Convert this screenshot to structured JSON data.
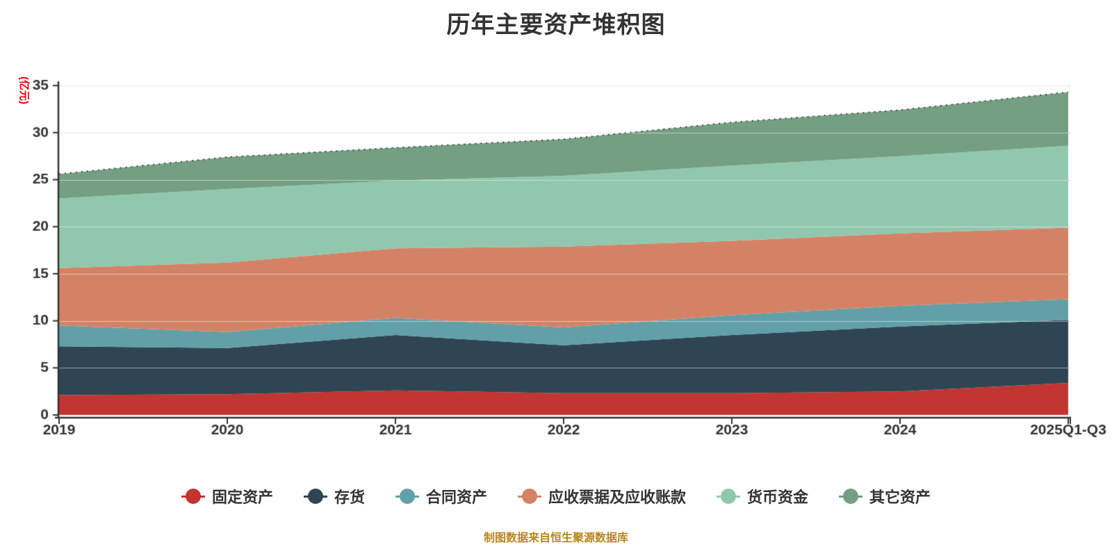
{
  "title": "历年主要资产堆积图",
  "y_axis": {
    "unit": "(亿元)",
    "unit_color": "#e60000"
  },
  "footer": {
    "text": "制图数据来自恒生聚源数据库",
    "color": "#b8861b"
  },
  "chart_data": {
    "type": "area",
    "stacked": true,
    "title": "历年主要资产堆积图",
    "ylabel": "(亿元)",
    "xlabel": "",
    "ylim": [
      0,
      35
    ],
    "y_interval": 5,
    "grid": true,
    "legend_position": "bottom",
    "categories": [
      "2019",
      "2020",
      "2021",
      "2022",
      "2023",
      "2024",
      "2025Q1-Q3"
    ],
    "series": [
      {
        "name": "固定资产",
        "color": "#c23531",
        "values": [
          2.1,
          2.2,
          2.6,
          2.3,
          2.3,
          2.5,
          3.4
        ]
      },
      {
        "name": "存货",
        "color": "#2f4554",
        "values": [
          5.2,
          4.9,
          5.9,
          5.1,
          6.2,
          6.9,
          6.7
        ]
      },
      {
        "name": "合同资产",
        "color": "#61a0a8",
        "values": [
          2.2,
          1.7,
          1.8,
          1.9,
          2.1,
          2.2,
          2.2
        ]
      },
      {
        "name": "应收票据及应收账款",
        "color": "#d48265",
        "values": [
          6.1,
          7.4,
          7.4,
          8.6,
          7.9,
          7.7,
          7.6
        ]
      },
      {
        "name": "货币资金",
        "color": "#91c7ae",
        "values": [
          7.4,
          7.8,
          7.2,
          7.5,
          8.0,
          8.2,
          8.7
        ]
      },
      {
        "name": "其它资产",
        "color": "#749f83",
        "values": [
          2.6,
          3.4,
          3.5,
          3.9,
          4.6,
          4.9,
          5.7
        ]
      }
    ],
    "stack_totals": [
      25.6,
      27.4,
      28.4,
      29.3,
      31.1,
      32.4,
      34.3
    ]
  }
}
